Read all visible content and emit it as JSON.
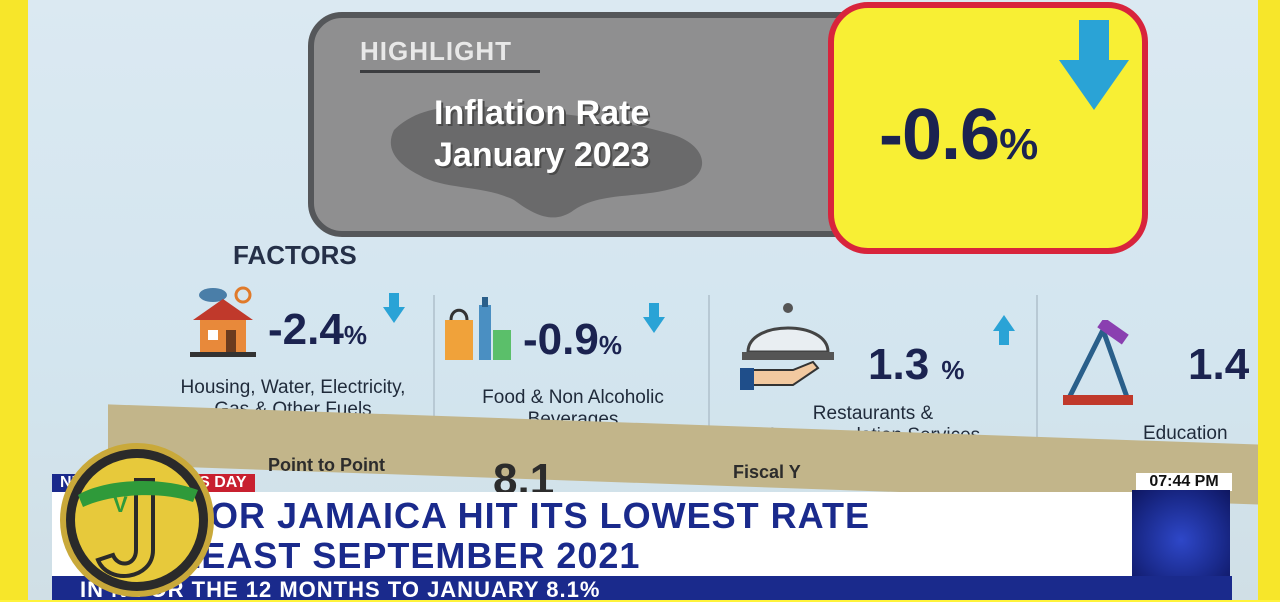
{
  "highlight": {
    "label": "HIGHLIGHT",
    "title_line1": "Inflation Rate",
    "title_line2": "January 2023",
    "rate": "-0.6",
    "rate_unit": "%"
  },
  "factors": {
    "heading": "FACTORS",
    "items": [
      {
        "value": "-2.4",
        "unit": "%",
        "direction": "down",
        "name_line1": "Housing, Water, Electricity,",
        "name_line2": "Gas & Other Fuels",
        "icon": "house-icon"
      },
      {
        "value": "-0.9",
        "unit": "%",
        "direction": "down",
        "name_line1": "Food & Non Alcoholic",
        "name_line2": "Beverages",
        "icon": "groceries-icon"
      },
      {
        "value": "1.3",
        "unit": "%",
        "direction": "up",
        "name_line1": "Restaurants &",
        "name_line2": "Accommodation Services",
        "icon": "cloche-icon"
      },
      {
        "value": "1.4",
        "unit": "",
        "direction": "",
        "name_line1": "Education",
        "name_line2": "",
        "icon": "education-icon"
      }
    ]
  },
  "lower_panel": {
    "point_label": "Point to Point",
    "point_value": "8.1",
    "fiscal_label": "Fiscal Y"
  },
  "ticker": {
    "news_tag": "NEWS",
    "section_tag": "BUSINESS DAY",
    "time": "07:44 PM",
    "headline_line1": "ON FOR JAMAICA HIT ITS LOWEST RATE",
    "headline_line2": "AT LEAST SEPTEMBER 2021",
    "subline": "IN      N FOR THE 12 MONTHS TO JANUARY 8.1%"
  },
  "colors": {
    "accent_yellow": "#f8ef34",
    "alert_red": "#d8243c",
    "navy": "#1a2a8c",
    "arrow_blue": "#2aa3d6"
  }
}
